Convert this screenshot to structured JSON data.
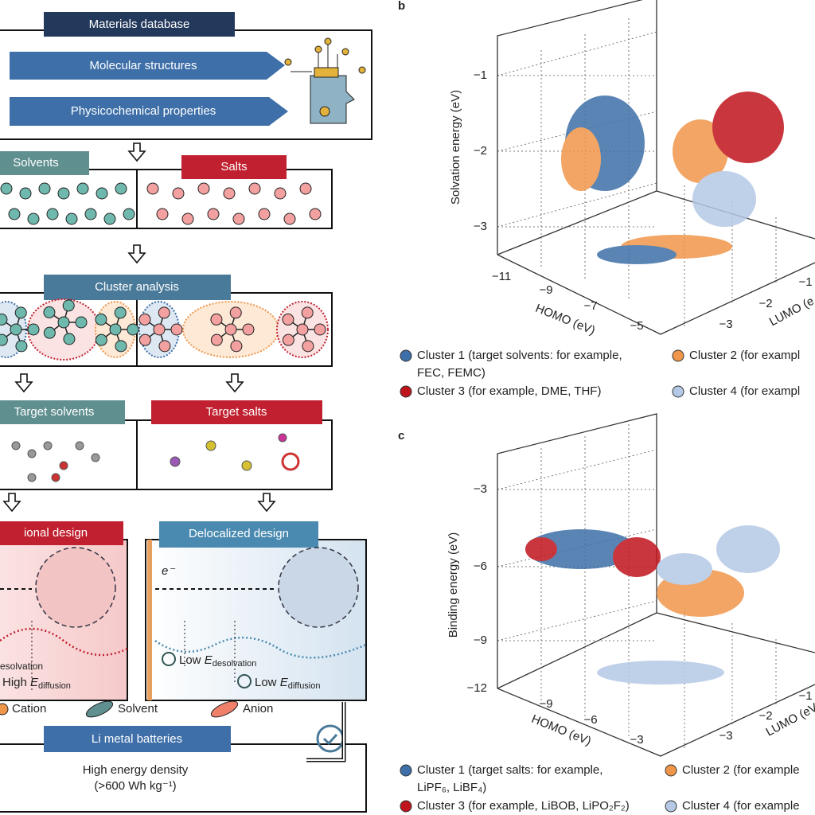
{
  "panel_a": {
    "database": "Materials database",
    "items": [
      "Molecular structures",
      "Physicochemical properties"
    ],
    "solvents": "Solvents",
    "salts": "Salts",
    "cluster": "Cluster analysis",
    "target_solvents": "Target solvents",
    "target_salts": "Target salts",
    "traditional": "ional design",
    "delocalized": "Delocalized design",
    "electron": "e⁻",
    "left_desolvation": "esolvation",
    "left_diffusion": {
      "prefix": "High",
      "symbol": "E",
      "subscript": "diffusion"
    },
    "low_desolvation": {
      "prefix": "Low",
      "symbol": "E",
      "subscript": "desolvation"
    },
    "low_diffusion": {
      "prefix": "Low",
      "symbol": "E",
      "subscript": "diffusion"
    },
    "legend": [
      "Cation",
      "Solvent",
      "Anion"
    ],
    "batteries": "Li metal batteries",
    "result": "High energy density",
    "result_sub": "(>600 Wh kg⁻¹)"
  },
  "panel_b": {
    "label": "b",
    "zlabel": "Solvation energy (eV)",
    "zticks": [
      "−1",
      "−2",
      "−3"
    ],
    "xlabel": "HOMO (eV)",
    "xticks": [
      "−11",
      "−9",
      "−7",
      "−5"
    ],
    "ylabel": "LUMO (e",
    "yticks": [
      "−3",
      "−2",
      "−1"
    ],
    "legend": [
      [
        "Cluster 1 (target solvents: for example,",
        "FEC, FEMC)"
      ],
      [
        "Cluster 2 (for exampl"
      ],
      [
        "Cluster 3 (for example, DME, THF)"
      ],
      [
        "Cluster 4 (for exampl"
      ]
    ]
  },
  "panel_c": {
    "label": "c",
    "zlabel": "Binding energy (eV)",
    "zticks": [
      "−3",
      "−6",
      "−9",
      "−12"
    ],
    "xlabel": "HOMO (eV)",
    "xticks": [
      "−9",
      "−6",
      "−3"
    ],
    "ylabel": "LUMO (eV",
    "yticks": [
      "−3",
      "−2",
      "−1"
    ],
    "legend": [
      [
        "Cluster 1 (target salts: for example,",
        "LiPF₆, LiBF₄)"
      ],
      [
        "Cluster 2 (for example"
      ],
      [
        "Cluster 3 (for example, LiBOB, LiPO₂F₂)"
      ],
      [
        "Cluster 4 (for example"
      ]
    ]
  }
}
